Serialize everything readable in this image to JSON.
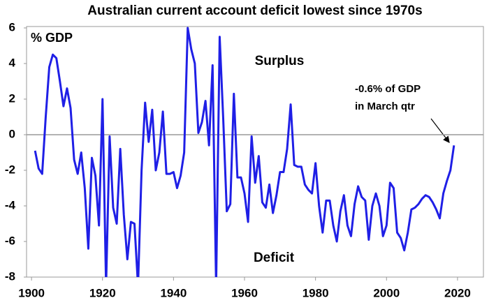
{
  "chart_data": {
    "type": "line",
    "title": "Australian current account deficit lowest since 1970s",
    "y_label": "% GDP",
    "annotations": [
      "Surplus",
      "Deficit"
    ],
    "note": [
      "-0.6% of GDP",
      "in March qtr"
    ],
    "x": [
      1901,
      1902,
      1903,
      1904,
      1905,
      1906,
      1907,
      1908,
      1909,
      1910,
      1911,
      1912,
      1913,
      1914,
      1915,
      1916,
      1917,
      1918,
      1919,
      1920,
      1921,
      1922,
      1923,
      1924,
      1925,
      1926,
      1927,
      1928,
      1929,
      1930,
      1931,
      1932,
      1933,
      1934,
      1935,
      1936,
      1937,
      1938,
      1939,
      1940,
      1941,
      1942,
      1943,
      1944,
      1945,
      1946,
      1947,
      1948,
      1949,
      1950,
      1951,
      1952,
      1953,
      1954,
      1955,
      1956,
      1957,
      1958,
      1959,
      1960,
      1961,
      1962,
      1963,
      1964,
      1965,
      1966,
      1967,
      1968,
      1969,
      1970,
      1971,
      1972,
      1973,
      1974,
      1975,
      1976,
      1977,
      1978,
      1979,
      1980,
      1981,
      1982,
      1983,
      1984,
      1985,
      1986,
      1987,
      1988,
      1989,
      1990,
      1991,
      1992,
      1993,
      1994,
      1995,
      1996,
      1997,
      1998,
      1999,
      2000,
      2001,
      2002,
      2003,
      2004,
      2005,
      2006,
      2007,
      2008,
      2009,
      2010,
      2011,
      2012,
      2013,
      2014,
      2015,
      2016,
      2017,
      2018,
      2019
    ],
    "series": [
      {
        "name": "Current account",
        "color": "#1f1fe6",
        "values": [
          -0.9,
          -1.9,
          -2.2,
          1.0,
          3.8,
          4.5,
          4.3,
          3.0,
          1.6,
          2.6,
          1.5,
          -1.4,
          -2.2,
          -1.0,
          -3.0,
          -6.4,
          -1.3,
          -2.3,
          -5.1,
          2.0,
          -8.5,
          -0.1,
          -4.1,
          -5.0,
          -0.8,
          -4.5,
          -7.0,
          -4.9,
          -5.0,
          -8.5,
          -2.0,
          1.8,
          -0.4,
          1.4,
          -2.0,
          -1.0,
          1.3,
          -2.2,
          -2.2,
          -2.1,
          -3.0,
          -2.3,
          -1.0,
          6.0,
          4.8,
          4.0,
          0.1,
          0.7,
          1.9,
          -0.6,
          3.9,
          -8.5,
          5.5,
          0.9,
          -4.3,
          -3.9,
          2.3,
          -2.4,
          -2.4,
          -3.3,
          -4.9,
          -0.1,
          -2.7,
          -1.2,
          -3.8,
          -4.1,
          -2.8,
          -4.4,
          -3.4,
          -2.1,
          -2.1,
          -0.8,
          1.7,
          -1.7,
          -1.8,
          -1.8,
          -2.8,
          -3.1,
          -3.3,
          -1.6,
          -4.0,
          -5.5,
          -3.7,
          -3.7,
          -5.1,
          -6.0,
          -4.3,
          -3.4,
          -5.1,
          -5.7,
          -3.9,
          -2.9,
          -3.5,
          -3.7,
          -5.9,
          -4.0,
          -3.3,
          -4.0,
          -5.7,
          -5.1,
          -2.7,
          -3.0,
          -5.5,
          -5.8,
          -6.5,
          -5.5,
          -4.2,
          -4.1,
          -3.9,
          -3.6,
          -3.4,
          -3.5,
          -3.8,
          -4.2,
          -4.7,
          -3.3,
          -2.6,
          -2.0,
          -0.6
        ]
      }
    ],
    "xlim": [
      1898.6,
      2027.3
    ],
    "xticks": [
      1900,
      1920,
      1940,
      1960,
      1980,
      2000,
      2020
    ],
    "ylim": [
      -8,
      6
    ],
    "yticks": [
      -8,
      -6,
      -4,
      -2,
      0,
      2,
      4,
      6
    ],
    "zero_line": true
  }
}
